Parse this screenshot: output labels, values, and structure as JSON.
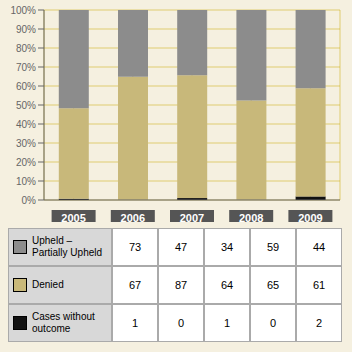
{
  "chart_data": {
    "type": "bar",
    "stacked": true,
    "grid": true,
    "categories": [
      "2005",
      "2006",
      "2007",
      "2008",
      "2009"
    ],
    "series": [
      {
        "name": "Cases without\noutcome",
        "color": "#111111",
        "values": [
          0.7092,
          0,
          1.0101,
          0,
          1.8692
        ],
        "counts": [
          1,
          0,
          1,
          0,
          2
        ]
      },
      {
        "name": "Denied",
        "color": "#c8b87a",
        "values": [
          47.5177,
          64.9254,
          64.6465,
          52.4194,
          57.0093
        ],
        "counts": [
          67,
          87,
          64,
          65,
          61
        ]
      },
      {
        "name": "Upheld –\nPartially Upheld",
        "color": "#8c8c8c",
        "values": [
          51.773,
          35.0746,
          34.3434,
          47.5806,
          41.1215
        ],
        "counts": [
          73,
          47,
          34,
          59,
          44
        ]
      }
    ],
    "ylim": [
      0,
      100
    ],
    "yticks": [
      {
        "value": 0,
        "label": "0%"
      },
      {
        "value": 10,
        "label": "10%"
      },
      {
        "value": 20,
        "label": "20%"
      },
      {
        "value": 30,
        "label": "30%"
      },
      {
        "value": 40,
        "label": "40%"
      },
      {
        "value": 50,
        "label": "50%"
      },
      {
        "value": 60,
        "label": "60%"
      },
      {
        "value": 70,
        "label": "70%"
      },
      {
        "value": 80,
        "label": "80%"
      },
      {
        "value": 90,
        "label": "90%"
      },
      {
        "value": 100,
        "label": "100%"
      }
    ]
  }
}
